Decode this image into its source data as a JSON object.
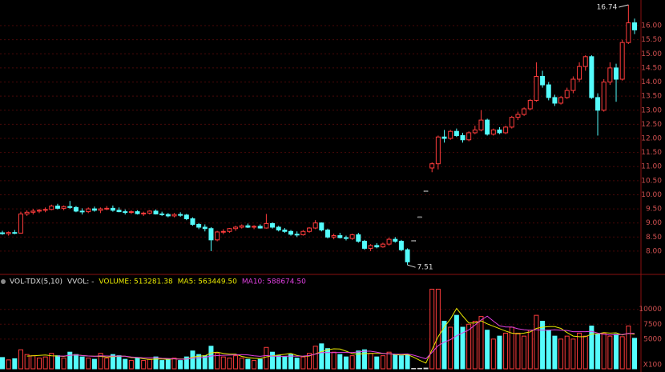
{
  "chart_data": {
    "type": "candlestick",
    "up_color": "#ff3c3c",
    "down_color": "#54fcfc",
    "flat_color": "#dddddd",
    "open": [
      8.65,
      8.62,
      8.66,
      8.64,
      9.32,
      9.38,
      9.42,
      9.45,
      9.48,
      9.6,
      9.52,
      9.58,
      9.55,
      9.42,
      9.4,
      9.5,
      9.45,
      9.5,
      9.52,
      9.45,
      9.4,
      9.38,
      9.4,
      9.33,
      9.35,
      9.42,
      9.32,
      9.3,
      9.25,
      9.3,
      9.28,
      9.15,
      8.95,
      8.85,
      8.8,
      8.4,
      8.68,
      8.7,
      8.8,
      8.85,
      8.9,
      8.85,
      8.88,
      8.82,
      8.98,
      8.85,
      8.75,
      8.7,
      8.6,
      8.58,
      8.7,
      8.82,
      9.0,
      8.75,
      8.5,
      8.55,
      8.48,
      8.45,
      8.58,
      8.35,
      8.1,
      8.2,
      8.15,
      8.25,
      8.42,
      8.35,
      8.05,
      8.38,
      9.22,
      10.14,
      10.95,
      11.1,
      12.05,
      12.0,
      12.25,
      12.1,
      11.95,
      12.2,
      12.3,
      12.65,
      12.15,
      12.3,
      12.2,
      12.4,
      12.75,
      12.85,
      13.05,
      13.35,
      14.2,
      13.9,
      13.45,
      13.25,
      13.45,
      13.7,
      14.1,
      14.55,
      14.9,
      13.45,
      13.0,
      14.0,
      14.5,
      14.1,
      15.4,
      16.1
    ],
    "high": [
      8.72,
      8.7,
      8.75,
      9.4,
      9.45,
      9.5,
      9.5,
      9.55,
      9.65,
      9.68,
      9.62,
      9.78,
      9.6,
      9.52,
      9.55,
      9.58,
      9.55,
      9.6,
      9.62,
      9.55,
      9.48,
      9.45,
      9.45,
      9.4,
      9.45,
      9.48,
      9.4,
      9.35,
      9.35,
      9.38,
      9.32,
      9.2,
      9.0,
      8.95,
      8.85,
      8.72,
      8.78,
      8.82,
      8.9,
      8.95,
      8.98,
      8.92,
      8.95,
      9.32,
      9.02,
      8.9,
      8.82,
      8.75,
      8.7,
      8.75,
      8.85,
      9.1,
      9.02,
      8.8,
      8.62,
      8.65,
      8.55,
      8.62,
      8.65,
      8.4,
      8.25,
      8.28,
      8.3,
      8.48,
      8.5,
      8.4,
      8.1,
      8.38,
      9.22,
      10.14,
      11.15,
      12.1,
      12.3,
      12.3,
      12.35,
      12.2,
      12.25,
      12.45,
      13.0,
      12.7,
      12.35,
      12.4,
      12.45,
      12.8,
      12.95,
      13.1,
      13.4,
      14.7,
      14.4,
      14.0,
      13.55,
      13.5,
      13.8,
      14.2,
      14.7,
      14.95,
      14.95,
      13.6,
      14.1,
      14.7,
      14.65,
      15.5,
      16.74,
      16.25
    ],
    "low": [
      8.58,
      8.55,
      8.6,
      8.62,
      9.25,
      9.3,
      9.35,
      9.38,
      9.45,
      9.48,
      9.45,
      9.5,
      9.38,
      9.3,
      9.35,
      9.4,
      9.35,
      9.45,
      9.4,
      9.38,
      9.3,
      9.32,
      9.3,
      9.25,
      9.3,
      9.3,
      9.25,
      9.2,
      9.2,
      9.22,
      9.1,
      8.9,
      8.78,
      8.7,
      8.0,
      8.35,
      8.6,
      8.65,
      8.72,
      8.8,
      8.82,
      8.78,
      8.8,
      8.8,
      8.8,
      8.7,
      8.65,
      8.55,
      8.5,
      8.55,
      8.65,
      8.78,
      8.7,
      8.45,
      8.42,
      8.45,
      8.38,
      8.4,
      8.3,
      8.05,
      8.0,
      8.1,
      8.12,
      8.2,
      8.3,
      8.0,
      7.51,
      8.38,
      9.22,
      10.14,
      10.8,
      10.9,
      11.85,
      11.95,
      12.05,
      11.85,
      11.9,
      12.15,
      12.25,
      12.1,
      12.1,
      12.15,
      12.15,
      12.35,
      12.65,
      12.8,
      13.0,
      13.3,
      13.8,
      13.35,
      13.15,
      13.2,
      13.4,
      13.6,
      14.0,
      14.4,
      13.4,
      12.1,
      12.95,
      13.9,
      13.3,
      14.05,
      15.35,
      15.7
    ],
    "close": [
      8.62,
      8.66,
      8.64,
      9.32,
      9.38,
      9.42,
      9.45,
      9.48,
      9.6,
      9.52,
      9.58,
      9.55,
      9.42,
      9.4,
      9.5,
      9.45,
      9.5,
      9.52,
      9.45,
      9.4,
      9.38,
      9.4,
      9.33,
      9.35,
      9.42,
      9.32,
      9.3,
      9.25,
      9.3,
      9.28,
      9.15,
      8.95,
      8.85,
      8.8,
      8.4,
      8.68,
      8.7,
      8.8,
      8.85,
      8.9,
      8.85,
      8.88,
      8.82,
      8.98,
      8.85,
      8.75,
      8.7,
      8.6,
      8.58,
      8.7,
      8.82,
      9.0,
      8.75,
      8.5,
      8.55,
      8.48,
      8.45,
      8.58,
      8.35,
      8.1,
      8.2,
      8.15,
      8.25,
      8.42,
      8.35,
      8.05,
      7.62,
      8.38,
      9.22,
      10.14,
      11.1,
      12.05,
      12.0,
      12.25,
      12.1,
      11.95,
      12.2,
      12.3,
      12.65,
      12.15,
      12.3,
      12.2,
      12.4,
      12.75,
      12.85,
      13.05,
      13.35,
      14.2,
      13.9,
      13.45,
      13.25,
      13.45,
      13.7,
      14.1,
      14.55,
      14.9,
      13.45,
      13.0,
      14.0,
      14.5,
      14.1,
      15.4,
      16.1,
      15.85
    ],
    "volume": [
      1900,
      1500,
      1700,
      3200,
      2400,
      2200,
      1800,
      2000,
      2600,
      2200,
      1800,
      2800,
      2400,
      2000,
      1800,
      1600,
      2600,
      1800,
      2400,
      2200,
      1600,
      1400,
      1800,
      1400,
      1600,
      2000,
      1400,
      1600,
      1800,
      1400,
      2000,
      3000,
      2400,
      2200,
      3800,
      2600,
      2000,
      1800,
      2200,
      1800,
      1600,
      1400,
      1600,
      3600,
      2800,
      2200,
      2000,
      2400,
      1800,
      2000,
      2600,
      3800,
      4200,
      3400,
      2800,
      2400,
      2000,
      2200,
      3000,
      3200,
      2600,
      2000,
      2200,
      2800,
      2400,
      2200,
      2400,
      60,
      80,
      120,
      13400,
      13400,
      8000,
      7000,
      9000,
      7000,
      7500,
      8000,
      8800,
      6500,
      5000,
      5500,
      6000,
      7000,
      6000,
      5500,
      6500,
      9000,
      8000,
      6500,
      5500,
      5000,
      5500,
      5000,
      6000,
      5500,
      7200,
      5800,
      6000,
      5500,
      5800,
      5400,
      7200,
      5133
    ],
    "ylim": [
      7.26,
      16.91
    ],
    "yticks": [
      {
        "value": 8,
        "label": "8.00"
      },
      {
        "value": 8.5,
        "label": "8.50"
      },
      {
        "value": 9,
        "label": "9.00"
      },
      {
        "value": 9.5,
        "label": "9.50"
      },
      {
        "value": 10,
        "label": "10.00"
      },
      {
        "value": 10.5,
        "label": "10.50"
      },
      {
        "value": 11,
        "label": "11.00"
      },
      {
        "value": 11.5,
        "label": "11.50"
      },
      {
        "value": 12,
        "label": "12.00"
      },
      {
        "value": 12.5,
        "label": "12.50"
      },
      {
        "value": 13,
        "label": "13.00"
      },
      {
        "value": 13.5,
        "label": "13.50"
      },
      {
        "value": 14,
        "label": "14.00"
      },
      {
        "value": 14.5,
        "label": "14.50"
      },
      {
        "value": 15,
        "label": "15.00"
      },
      {
        "value": 15.5,
        "label": "15.50"
      },
      {
        "value": 16,
        "label": "16.00"
      }
    ],
    "max_label": "16.74",
    "min_label": "7.51",
    "vol_ylim": [
      0,
      14000
    ],
    "vol_yticks": [
      5000,
      7500,
      10000
    ],
    "vol_unit": "X100",
    "vol_header": [
      {
        "text": "VOL-TDX(5,10)",
        "color": "#dddddd"
      },
      {
        "text": "VVOL: -",
        "color": "#dddddd"
      },
      {
        "text": "VOLUME: 513281.38",
        "color": "#e8e800"
      },
      {
        "text": "MA5: 563449.50",
        "color": "#e8e800"
      },
      {
        "text": "MA10: 588674.50",
        "color": "#e040e0"
      }
    ],
    "ma5_color": "#e8e800",
    "ma10_color": "#e040e0"
  }
}
